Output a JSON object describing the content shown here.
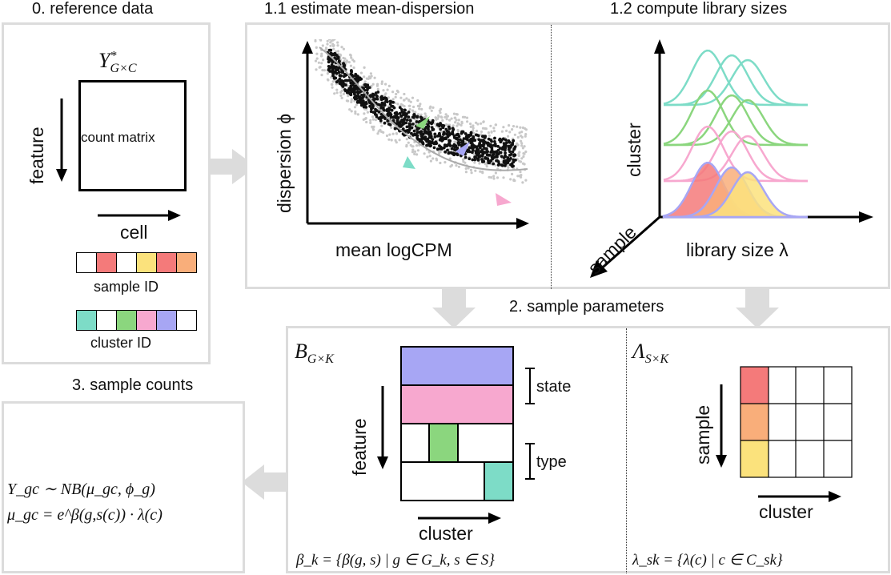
{
  "titles": {
    "ref": "0. reference data",
    "meandisp": "1.1 estimate mean-dispersion",
    "libsize": "1.2 compute library sizes",
    "sampleparams": "2. sample parameters",
    "samplecounts": "3. sample counts"
  },
  "ref": {
    "matrix_symbol": "Y*G×C",
    "matrix_label": "count matrix",
    "feature_axis": "feature",
    "cell_axis": "cell",
    "sample_id_label": "sample ID",
    "cluster_id_label": "cluster ID",
    "sample_id_colors": [
      "#ffffff",
      "#f47a7a",
      "#ffffff",
      "#fbe27c",
      "#f47a7a",
      "#f9ae7a"
    ],
    "cluster_id_colors": [
      "#7ddcc7",
      "#ffffff",
      "#8bd67e",
      "#f7a8cf",
      "#a7a6f4",
      "#ffffff"
    ]
  },
  "meandisp": {
    "ylabel": "dispersion ϕ",
    "xlabel": "mean logCPM"
  },
  "libsize": {
    "ylabel": "cluster",
    "xlabel": "library size λ",
    "zlabel": "sample"
  },
  "beta": {
    "symbol": "B",
    "subscript": "G×K",
    "feature_axis": "feature",
    "cluster_axis": "cluster",
    "state_label": "state",
    "type_label": "type",
    "formula": "β_k = {β(g, s) | g ∈ G_k, s ∈ S}"
  },
  "lambda": {
    "symbol": "Λ",
    "subscript": "S×K",
    "sample_axis": "sample",
    "cluster_axis": "cluster",
    "formula": "λ_sk = {λ(c) | c ∈ C_sk}"
  },
  "counts": {
    "line1": "Y_gc ∼ NB(μ_gc, ϕ_g)",
    "line2": "μ_gc = e^β(g,s(c)) · λ(c)"
  },
  "colors": {
    "red": "#f47a7a",
    "orange": "#f9ae7a",
    "yellow": "#fbe27c",
    "teal": "#7ddcc7",
    "green": "#8bd67e",
    "pink": "#f7a8cf",
    "purple": "#a7a6f4",
    "panel_border": "#dcdcdc"
  }
}
